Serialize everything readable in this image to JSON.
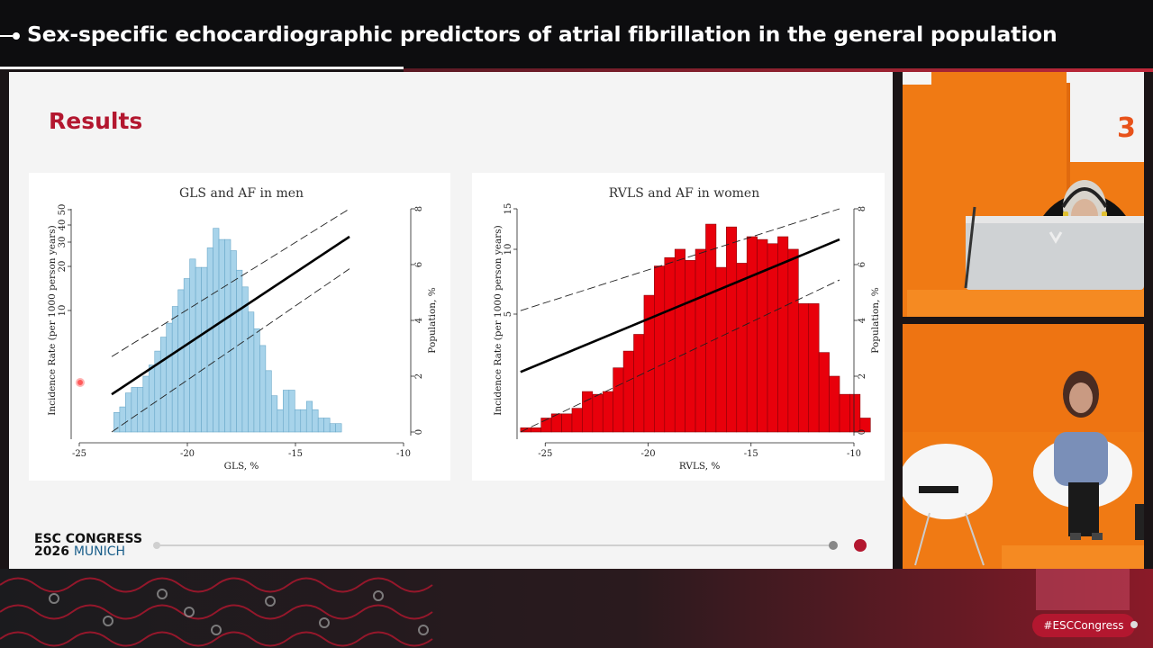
{
  "session": {
    "title": "Sex-specific echocardiographic predictors of atrial fibrillation in the general population"
  },
  "slide": {
    "heading": "Results",
    "logo_line1": "ESC CONGRESS",
    "logo_year": "2026",
    "logo_city": "MUNICH"
  },
  "hashtag": "#ESCCongress",
  "colors": {
    "accent": "#b3172f",
    "men_bars": "#a7d3ea",
    "women_bars": "#e8000b",
    "stage_orange": "#f07a14"
  },
  "icons": {
    "speaker_feed": "person-at-podium",
    "moderator_feed": "person-seated"
  },
  "chart_data": [
    {
      "type": "bar",
      "title": "GLS and AF in men",
      "xlabel": "GLS, %",
      "ylabel_left": "Incidence Rate (per 1000 person years)",
      "ylabel_right": "Population, %",
      "xlim": [
        -25,
        -10
      ],
      "xticks": [
        -25,
        -20,
        -15,
        -10
      ],
      "y_left_ticks": [
        "10",
        "20",
        "30",
        "40",
        "50"
      ],
      "y_right_lim": [
        0,
        8
      ],
      "y_right_ticks": [
        0,
        2,
        4,
        6,
        8
      ],
      "bins": {
        "start": -23.4,
        "width": 0.27,
        "values": [
          0.7,
          0.9,
          1.4,
          1.6,
          1.6,
          2.0,
          2.4,
          2.9,
          3.4,
          3.9,
          4.5,
          5.1,
          5.5,
          6.2,
          5.9,
          5.9,
          6.6,
          7.3,
          6.9,
          6.9,
          6.5,
          5.8,
          5.2,
          4.3,
          3.7,
          3.1,
          2.2,
          1.3,
          0.8,
          1.5,
          1.5,
          0.8,
          0.8,
          1.1,
          0.8,
          0.5,
          0.5,
          0.3,
          0.3
        ]
      },
      "fit_line": {
        "x": [
          -23.5,
          -12.5
        ],
        "y": [
          1.35,
          7.0
        ]
      },
      "ci_upper": {
        "x": [
          -23.5,
          -12.5
        ],
        "y": [
          2.7,
          8.0
        ]
      },
      "ci_lower": {
        "x": [
          -23.5,
          -12.5
        ],
        "y": [
          0.0,
          5.85
        ]
      }
    },
    {
      "type": "bar",
      "title": "RVLS and AF in women",
      "xlabel": "RVLS, %",
      "ylabel_left": "Incidence Rate (per 1000 person years)",
      "ylabel_right": "Population, %",
      "xlim": [
        -26.5,
        -10
      ],
      "xticks": [
        -25,
        -20,
        -15,
        -10
      ],
      "y_left_ticks": [
        "5",
        "10",
        "15"
      ],
      "y_right_lim": [
        0,
        8
      ],
      "y_right_ticks": [
        0,
        2,
        4,
        6,
        8
      ],
      "bins": {
        "start": -26.2,
        "width": 0.5,
        "values": [
          0.15,
          0.15,
          0.5,
          0.65,
          0.65,
          0.85,
          1.45,
          1.35,
          1.45,
          2.3,
          2.9,
          3.5,
          4.9,
          5.95,
          6.25,
          6.55,
          6.15,
          6.55,
          7.45,
          5.9,
          7.35,
          6.05,
          7.0,
          6.9,
          6.75,
          7.0,
          6.55,
          4.6,
          4.6,
          2.85,
          2.0,
          1.35,
          1.35,
          0.5
        ]
      },
      "fit_line": {
        "x": [
          -26.2,
          -10.7
        ],
        "y": [
          2.15,
          6.9
        ]
      },
      "ci_upper": {
        "x": [
          -26.2,
          -10.7
        ],
        "y": [
          4.35,
          8.0
        ]
      },
      "ci_lower": {
        "x": [
          -26.2,
          -10.7
        ],
        "y": [
          0.0,
          5.45
        ]
      }
    }
  ]
}
